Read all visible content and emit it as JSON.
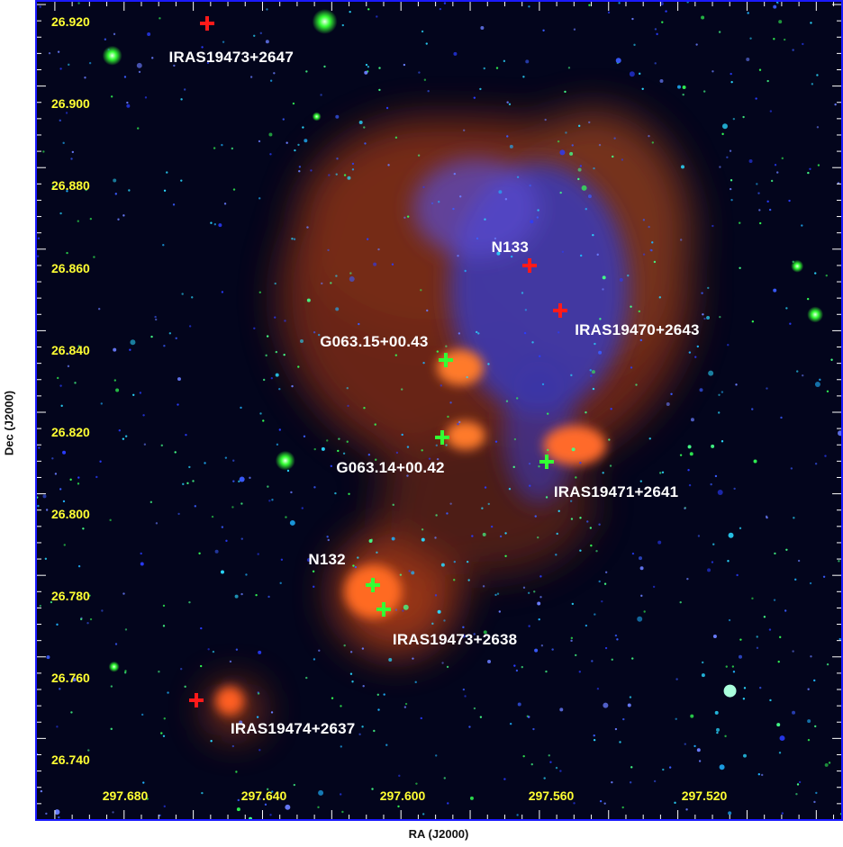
{
  "axes": {
    "x_title": "RA (J2000)",
    "y_title": "Dec (J2000)",
    "x_ticks": [
      "297.680",
      "297.640",
      "297.600",
      "297.560",
      "297.520"
    ],
    "y_ticks": [
      "26.920",
      "26.900",
      "26.880",
      "26.860",
      "26.840",
      "26.820",
      "26.800",
      "26.780",
      "26.760",
      "26.740"
    ]
  },
  "colors": {
    "axis_label": "#ffff33",
    "frame": "#1a1aff",
    "marker_red": "#ff1a1a",
    "marker_green": "#33ff33",
    "label_text": "#ffffff"
  },
  "sources": [
    {
      "name": "IRAS19473+2647",
      "marker": "red",
      "ra": 297.657,
      "dec": 26.92
    },
    {
      "name": "N133",
      "marker": "red",
      "ra": 297.564,
      "dec": 26.861
    },
    {
      "name": "IRAS19470+2643",
      "marker": "red",
      "ra": 297.555,
      "dec": 26.85
    },
    {
      "name": "G063.15+00.43",
      "marker": "green",
      "ra": 297.588,
      "dec": 26.838
    },
    {
      "name": "G063.14+00.42",
      "marker": "green",
      "ra": 297.589,
      "dec": 26.819
    },
    {
      "name": "IRAS19471+2641",
      "marker": "green",
      "ra": 297.559,
      "dec": 26.813
    },
    {
      "name": "N132",
      "marker": "green",
      "ra": 297.609,
      "dec": 26.783
    },
    {
      "name": "IRAS19473+2638",
      "marker": "green",
      "ra": 297.606,
      "dec": 26.777
    },
    {
      "name": "IRAS19474+2637",
      "marker": "red",
      "ra": 297.66,
      "dec": 26.755
    }
  ]
}
